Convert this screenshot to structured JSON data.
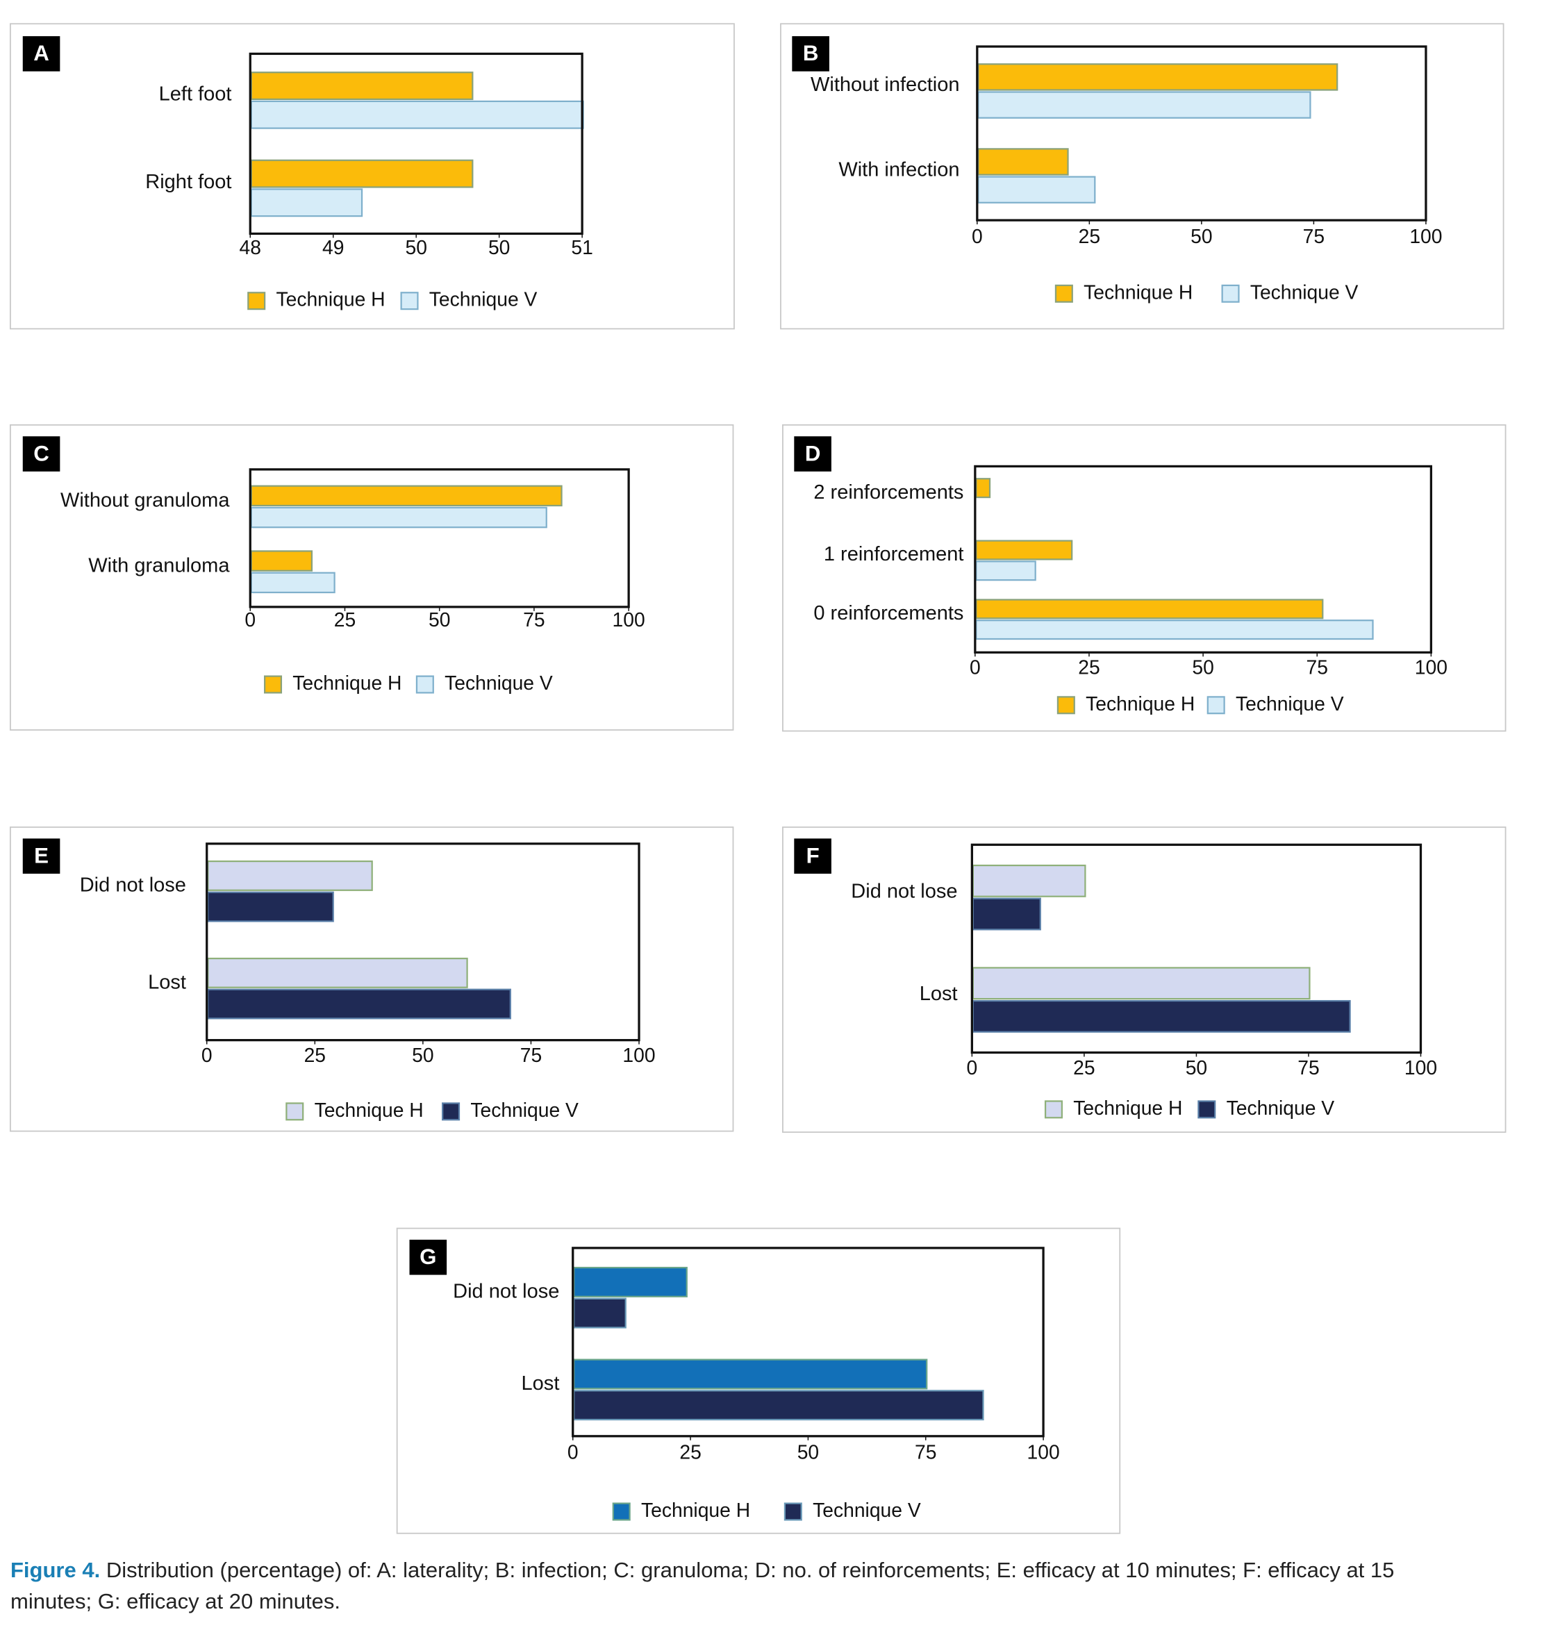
{
  "chart_data": [
    {
      "type": "barh",
      "label": "A",
      "categories": [
        "Left foot",
        "Right foot"
      ],
      "series": [
        {
          "name": "Technique H",
          "color": "#fbbb0a",
          "edgecolor": "#8aa27a",
          "values": [
            50,
            50
          ]
        },
        {
          "name": "Technique V",
          "color": "#d6ecf8",
          "edgecolor": "#7fb0cc",
          "values": [
            51,
            49
          ]
        }
      ],
      "xlim": [
        48,
        51
      ],
      "xticks": [
        48,
        {
          "value": 48.75,
          "label": "49"
        },
        {
          "value": 49.5,
          "label": "50"
        },
        {
          "value": 50.25,
          "label": "50"
        },
        51
      ]
    },
    {
      "type": "barh",
      "label": "B",
      "categories": [
        "Without infection",
        "With infection"
      ],
      "series": [
        {
          "name": "Technique H",
          "color": "#fbbb0a",
          "edgecolor": "#8aa27a",
          "values": [
            80,
            20
          ]
        },
        {
          "name": "Technique V",
          "color": "#d6ecf8",
          "edgecolor": "#7fb0cc",
          "values": [
            74,
            26
          ]
        }
      ],
      "xlim": [
        0,
        100
      ],
      "xticks": [
        0,
        25,
        50,
        75,
        100
      ]
    },
    {
      "type": "barh",
      "label": "C",
      "categories": [
        "Without granuloma",
        "With granuloma"
      ],
      "series": [
        {
          "name": "Technique H",
          "color": "#fbbb0a",
          "edgecolor": "#8aa27a",
          "values": [
            82,
            16
          ]
        },
        {
          "name": "Technique V",
          "color": "#d6ecf8",
          "edgecolor": "#7fb0cc",
          "values": [
            78,
            22
          ]
        }
      ],
      "xlim": [
        0,
        100
      ],
      "xticks": [
        0,
        25,
        50,
        75,
        100
      ]
    },
    {
      "type": "barh",
      "label": "D",
      "categories": [
        "2 reinforcements",
        "1 reinforcement",
        "0 reinforcements"
      ],
      "series": [
        {
          "name": "Technique H",
          "color": "#fbbb0a",
          "edgecolor": "#8aa27a",
          "values": [
            3,
            21,
            76
          ]
        },
        {
          "name": "Technique V",
          "color": "#d6ecf8",
          "edgecolor": "#7fb0cc",
          "values": [
            0,
            13,
            87
          ]
        }
      ],
      "xlim": [
        0,
        100
      ],
      "xticks": [
        0,
        25,
        50,
        75,
        100
      ]
    },
    {
      "type": "barh",
      "label": "E",
      "categories": [
        "Did not lose",
        "Lost"
      ],
      "series": [
        {
          "name": "Technique H",
          "color": "#d3d9f0",
          "edgecolor": "#8fb07a",
          "values": [
            38,
            60
          ]
        },
        {
          "name": "Technique V",
          "color": "#1f2a55",
          "edgecolor": "#5a7fa8",
          "values": [
            29,
            70
          ]
        }
      ],
      "xlim": [
        0,
        100
      ],
      "xticks": [
        0,
        25,
        50,
        75,
        100
      ]
    },
    {
      "type": "barh",
      "label": "F",
      "categories": [
        "Did not lose",
        "Lost"
      ],
      "series": [
        {
          "name": "Technique H",
          "color": "#d3d9f0",
          "edgecolor": "#8fb07a",
          "values": [
            25,
            75
          ]
        },
        {
          "name": "Technique V",
          "color": "#1f2a55",
          "edgecolor": "#5a7fa8",
          "values": [
            15,
            84
          ]
        }
      ],
      "xlim": [
        0,
        100
      ],
      "xticks": [
        0,
        25,
        50,
        75,
        100
      ]
    },
    {
      "type": "barh",
      "label": "G",
      "categories": [
        "Did not lose",
        "Lost"
      ],
      "series": [
        {
          "name": "Technique H",
          "color": "#1270b8",
          "edgecolor": "#6aa58a",
          "values": [
            24,
            75
          ]
        },
        {
          "name": "Technique V",
          "color": "#1f2a55",
          "edgecolor": "#6a9ab8",
          "values": [
            11,
            87
          ]
        }
      ],
      "xlim": [
        0,
        100
      ],
      "xticks": [
        0,
        25,
        50,
        75,
        100
      ]
    }
  ],
  "caption": {
    "label": "Figure 4.",
    "text": "Distribution (percentage) of: A: laterality; B: infection; C: granuloma; D: no. of reinforcements; E: efficacy at 10 minutes; F: efficacy at 15 minutes; G: efficacy at 20 minutes."
  }
}
